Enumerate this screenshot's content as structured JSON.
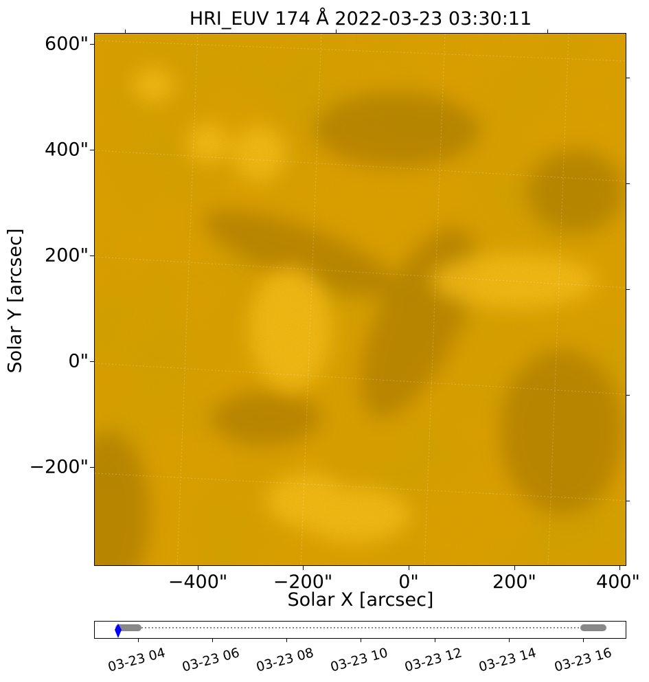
{
  "title": "HRI_EUV 174 Å 2022-03-23 03:30:11",
  "axes": {
    "xlabel": "Solar X [arcsec]",
    "ylabel": "Solar Y [arcsec]",
    "x_ticks": [
      "−400\"",
      "−200\"",
      "0\"",
      "200\"",
      "400\""
    ],
    "y_ticks": [
      "600\"",
      "400\"",
      "200\"",
      "0\"",
      "−200\""
    ]
  },
  "image": {
    "description_colors": {
      "base": "#e6a100",
      "bright": "#ffcc33",
      "dark": "#a87200"
    }
  },
  "timeline": {
    "labels": [
      "03-23 04",
      "03-23 06",
      "03-23 08",
      "03-23 10",
      "03-23 12",
      "03-23 14",
      "03-23 16"
    ],
    "marker_color": "#0000ff",
    "segment_color": "#888888"
  }
}
